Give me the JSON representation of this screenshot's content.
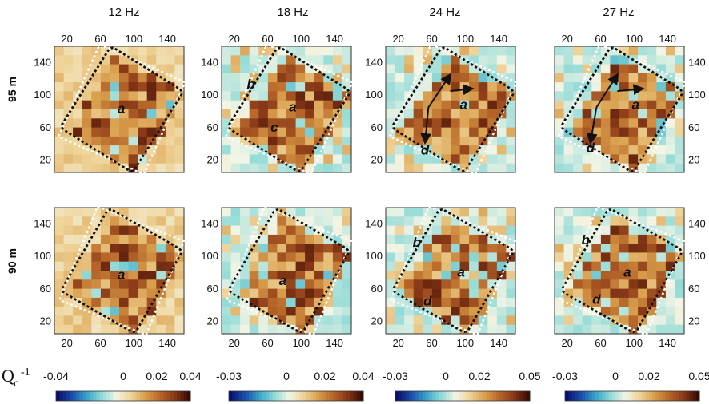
{
  "figure": {
    "columns": [
      {
        "freq": "12 Hz",
        "colorbar": {
          "min": -0.04,
          "max": 0.04,
          "tick_labels": [
            "-0.04",
            "0",
            "0.02",
            "0.04"
          ],
          "tick_values": [
            -0.04,
            0,
            0.02,
            0.04
          ]
        }
      },
      {
        "freq": "18 Hz",
        "colorbar": {
          "min": -0.03,
          "max": 0.04,
          "tick_labels": [
            "-0.03",
            "0",
            "0.02",
            "0.04"
          ],
          "tick_values": [
            -0.03,
            0,
            0.02,
            0.04
          ]
        }
      },
      {
        "freq": "24 Hz",
        "colorbar": {
          "min": -0.03,
          "max": 0.05,
          "tick_labels": [
            "-0.03",
            "0",
            "0.02",
            "0.05"
          ],
          "tick_values": [
            -0.03,
            0,
            0.02,
            0.05
          ]
        }
      },
      {
        "freq": "27 Hz",
        "colorbar": {
          "min": -0.03,
          "max": 0.05,
          "tick_labels": [
            "-0.03",
            "0",
            "0.02",
            "0.05"
          ],
          "tick_values": [
            -0.03,
            0,
            0.02,
            0.05
          ]
        }
      }
    ],
    "rows": [
      {
        "depth": "95 m"
      },
      {
        "depth": "90 m"
      }
    ],
    "colorbar_label": "Q",
    "colorbar_label_sub": "c",
    "colorbar_label_sup": "-1",
    "colormap": [
      "#08106b",
      "#1b4fa8",
      "#3aa3c8",
      "#8ed9d6",
      "#f2f5e6",
      "#efd49a",
      "#d9a04e",
      "#b8682a",
      "#8a3a17",
      "#3a0b05"
    ]
  },
  "chart_data": {
    "type": "heatmap",
    "title": "",
    "xlabel": "",
    "ylabel": "",
    "x_tick_labels": [
      "20",
      "60",
      "100",
      "140"
    ],
    "y_tick_labels": [
      "20",
      "60",
      "100",
      "140"
    ],
    "xlim": [
      5,
      160
    ],
    "ylim": [
      5,
      160
    ],
    "panels": [
      {
        "row": "95 m",
        "freq": "12 Hz",
        "labels": [
          {
            "text": "a",
            "x": 85,
            "y": 78
          }
        ],
        "arrows": []
      },
      {
        "row": "95 m",
        "freq": "18 Hz",
        "labels": [
          {
            "text": "b",
            "x": 40,
            "y": 108
          },
          {
            "text": "a",
            "x": 90,
            "y": 80
          },
          {
            "text": "c",
            "x": 68,
            "y": 55
          }
        ],
        "arrows": []
      },
      {
        "row": "95 m",
        "freq": "24 Hz",
        "labels": [
          {
            "text": "a",
            "x": 98,
            "y": 83
          },
          {
            "text": "d",
            "x": 52,
            "y": 27
          }
        ],
        "arrows": [
          {
            "from": [
              56,
              85
            ],
            "to": [
              52,
              42
            ]
          },
          {
            "from": [
              56,
              85
            ],
            "to": [
              82,
              125
            ]
          },
          {
            "from": [
              82,
              105
            ],
            "to": [
              108,
              108
            ]
          }
        ]
      },
      {
        "row": "95 m",
        "freq": "27 Hz",
        "labels": [
          {
            "text": "a",
            "x": 102,
            "y": 83
          },
          {
            "text": "d",
            "x": 48,
            "y": 30
          }
        ],
        "arrows": [
          {
            "from": [
              55,
              85
            ],
            "to": [
              48,
              42
            ]
          },
          {
            "from": [
              55,
              85
            ],
            "to": [
              80,
              125
            ]
          },
          {
            "from": [
              80,
              105
            ],
            "to": [
              110,
              108
            ]
          }
        ]
      },
      {
        "row": "90 m",
        "freq": "12 Hz",
        "labels": [
          {
            "text": "a",
            "x": 85,
            "y": 72
          }
        ],
        "arrows": []
      },
      {
        "row": "90 m",
        "freq": "18 Hz",
        "labels": [
          {
            "text": "a",
            "x": 78,
            "y": 65
          }
        ],
        "arrows": []
      },
      {
        "row": "90 m",
        "freq": "24 Hz",
        "labels": [
          {
            "text": "b",
            "x": 42,
            "y": 112
          },
          {
            "text": "a",
            "x": 95,
            "y": 75
          },
          {
            "text": "d",
            "x": 55,
            "y": 40
          }
        ],
        "arrows": []
      },
      {
        "row": "90 m",
        "freq": "27 Hz",
        "labels": [
          {
            "text": "b",
            "x": 42,
            "y": 115
          },
          {
            "text": "a",
            "x": 92,
            "y": 75
          },
          {
            "text": "d",
            "x": 55,
            "y": 42
          }
        ],
        "arrows": []
      }
    ]
  }
}
